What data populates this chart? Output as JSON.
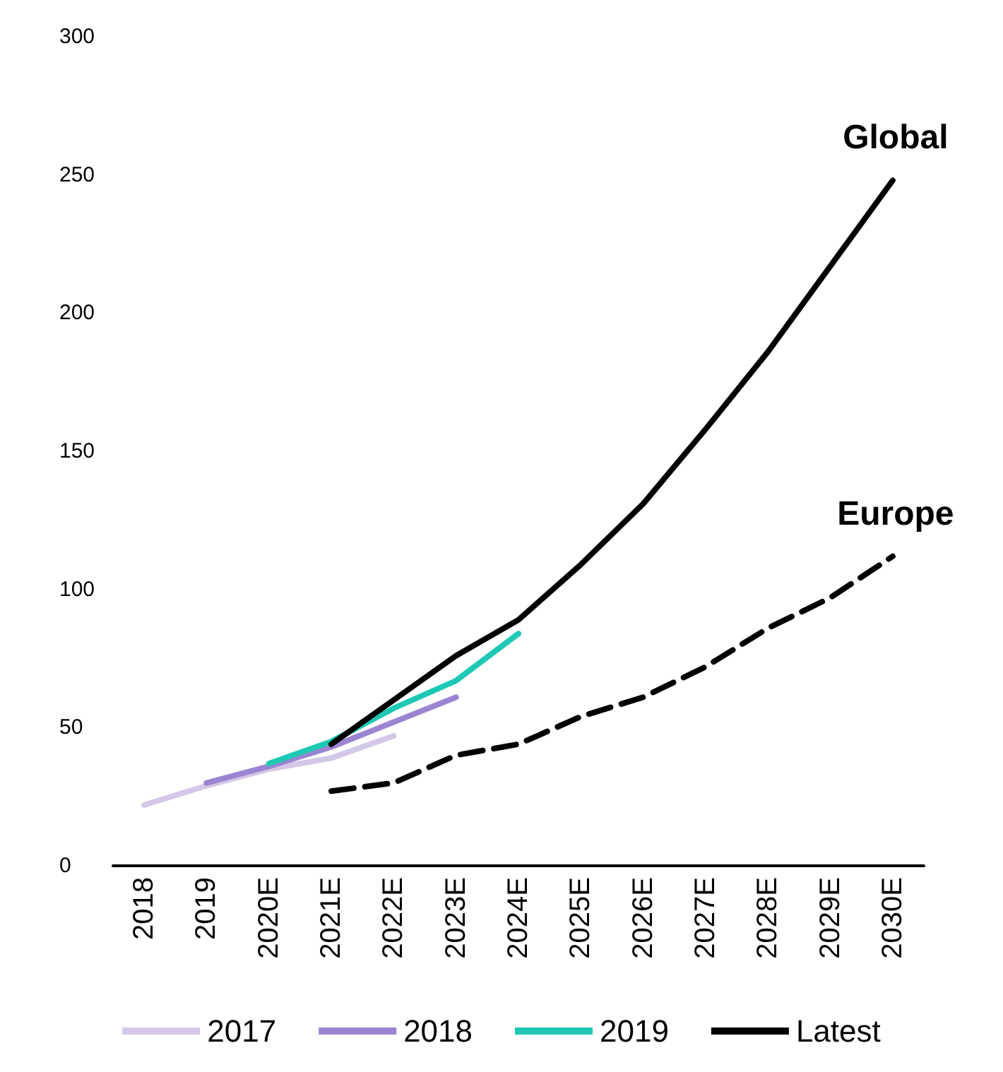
{
  "chart_data": {
    "type": "line",
    "categories": [
      "2018",
      "2019",
      "2020E",
      "2021E",
      "2022E",
      "2023E",
      "2024E",
      "2025E",
      "2026E",
      "2027E",
      "2028E",
      "2029E",
      "2030E"
    ],
    "series": [
      {
        "name": "2017",
        "color": "#d4c8e8",
        "values": [
          22,
          29,
          35,
          39,
          47,
          null,
          null,
          null,
          null,
          null,
          null,
          null,
          null
        ]
      },
      {
        "name": "2018",
        "color": "#9b85d2",
        "values": [
          null,
          30,
          36,
          43,
          52,
          61,
          null,
          null,
          null,
          null,
          null,
          null,
          null
        ]
      },
      {
        "name": "2019",
        "color": "#1ec8b4",
        "values": [
          null,
          null,
          37,
          45,
          57,
          67,
          84,
          null,
          null,
          null,
          null,
          null,
          null
        ]
      },
      {
        "name": "Latest",
        "color": "#000000",
        "values": [
          null,
          null,
          null,
          44,
          60,
          76,
          89,
          109,
          131,
          158,
          186,
          217,
          248
        ]
      },
      {
        "color": "#000000",
        "line_style": "dashed",
        "values": [
          null,
          null,
          null,
          27,
          30,
          40,
          44,
          54,
          61,
          72,
          86,
          97,
          112
        ]
      }
    ],
    "annotations": [
      {
        "text": "Global",
        "x": "2030E",
        "y": 248
      },
      {
        "text": "Europe",
        "x": "2030E",
        "y": 112
      }
    ],
    "ylim": [
      0,
      300
    ],
    "yticks": [
      0,
      50,
      100,
      150,
      200,
      250,
      300
    ],
    "grid": false,
    "legend": "bottom",
    "marker": "none",
    "line_style": "solid"
  }
}
